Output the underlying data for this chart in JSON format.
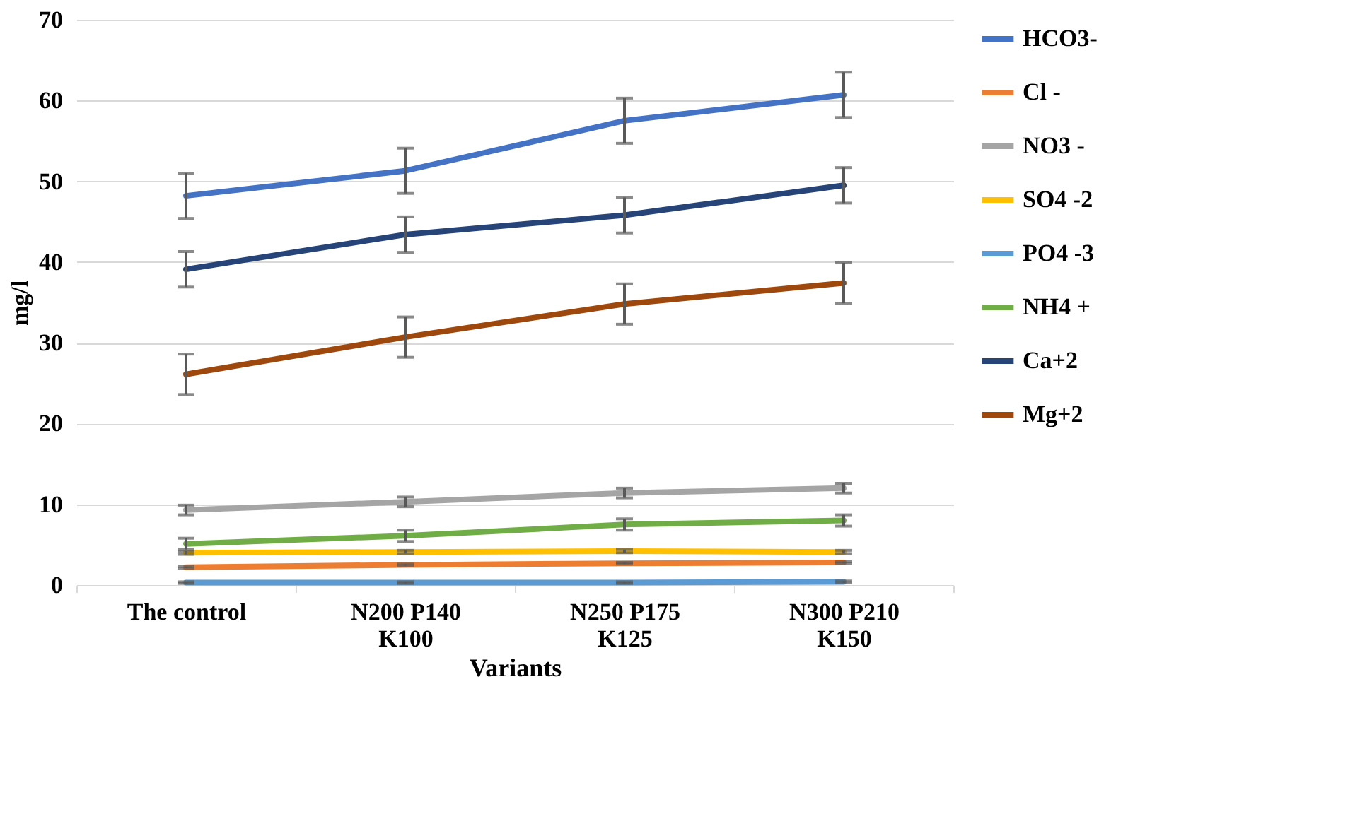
{
  "chart_data": {
    "type": "line",
    "xlabel": "Variants",
    "ylabel": "mg/l",
    "categories": [
      "The control",
      "N200 P140 K100",
      "N250 P175 K125",
      "N300 P210 K150"
    ],
    "series": [
      {
        "name": "HCO3-",
        "color": "#4472c4",
        "values": [
          48.2,
          51.3,
          57.5,
          60.7
        ],
        "errors": [
          2.8,
          2.8,
          2.8,
          2.8
        ]
      },
      {
        "name": "Cl -",
        "color": "#ed7d31",
        "values": [
          2.2,
          2.5,
          2.7,
          2.8
        ],
        "errors": [
          0.1,
          0.1,
          0.1,
          0.1
        ]
      },
      {
        "name": "NO3 -",
        "color": "#a5a5a5",
        "values": [
          9.3,
          10.3,
          11.4,
          12.0
        ],
        "errors": [
          0.6,
          0.6,
          0.6,
          0.6
        ]
      },
      {
        "name": "SO4 -2",
        "color": "#ffc000",
        "values": [
          4.0,
          4.1,
          4.2,
          4.1
        ],
        "errors": [
          0.2,
          0.2,
          0.2,
          0.2
        ]
      },
      {
        "name": "PO4 -3",
        "color": "#5b9bd5",
        "values": [
          0.3,
          0.3,
          0.3,
          0.4
        ],
        "errors": [
          0.1,
          0.1,
          0.1,
          0.1
        ]
      },
      {
        "name": "NH4 +",
        "color": "#70ad47",
        "values": [
          5.1,
          6.1,
          7.5,
          8.0
        ],
        "errors": [
          0.7,
          0.7,
          0.7,
          0.7
        ]
      },
      {
        "name": "Ca+2",
        "color": "#264478",
        "values": [
          39.1,
          43.4,
          45.8,
          49.5
        ],
        "errors": [
          2.2,
          2.2,
          2.2,
          2.2
        ]
      },
      {
        "name": "Mg+2",
        "color": "#9e480e",
        "values": [
          26.1,
          30.7,
          34.8,
          37.4
        ],
        "errors": [
          2.5,
          2.5,
          2.5,
          2.5
        ]
      }
    ],
    "ylim": [
      0,
      70
    ],
    "yticks": [
      0,
      10,
      20,
      30,
      40,
      50,
      60,
      70
    ],
    "grid": "y",
    "legend": "right",
    "marker": "none",
    "line_style": "solid"
  }
}
